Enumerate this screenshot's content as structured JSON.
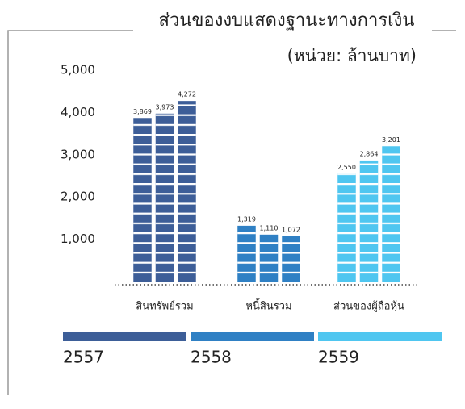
{
  "chart_data": {
    "type": "bar",
    "title": "ส่วนของงบแสดงฐานะทางการเงิน",
    "subtitle": "(หน่วย: ล้านบาท)",
    "categories": [
      "สินทรัพย์รวม",
      "หนี้สินรวม",
      "ส่วนของผู้ถือหุ้น"
    ],
    "category_colors": [
      "#3d5e98",
      "#2f80c4",
      "#4fc6f0"
    ],
    "series": [
      {
        "name": "2557",
        "color": "#3d5e98",
        "values": [
          3869,
          1319,
          2550
        ],
        "value_labels": [
          "3,869",
          "1,319",
          "2,550"
        ]
      },
      {
        "name": "2558",
        "color": "#2f80c4",
        "values": [
          3973,
          1110,
          2864
        ],
        "value_labels": [
          "3,973",
          "1,110",
          "2,864"
        ]
      },
      {
        "name": "2559",
        "color": "#4fc6f0",
        "values": [
          4272,
          1072,
          3201
        ],
        "value_labels": [
          "4,272",
          "1,072",
          "3,201"
        ]
      }
    ],
    "ylim": [
      0,
      5000
    ],
    "yticks": [
      {
        "value": 1000,
        "label": "1,000"
      },
      {
        "value": 2000,
        "label": "2,000"
      },
      {
        "value": 3000,
        "label": "3,000"
      },
      {
        "value": 4000,
        "label": "4,000"
      },
      {
        "value": 5000,
        "label": "5,000"
      }
    ]
  }
}
